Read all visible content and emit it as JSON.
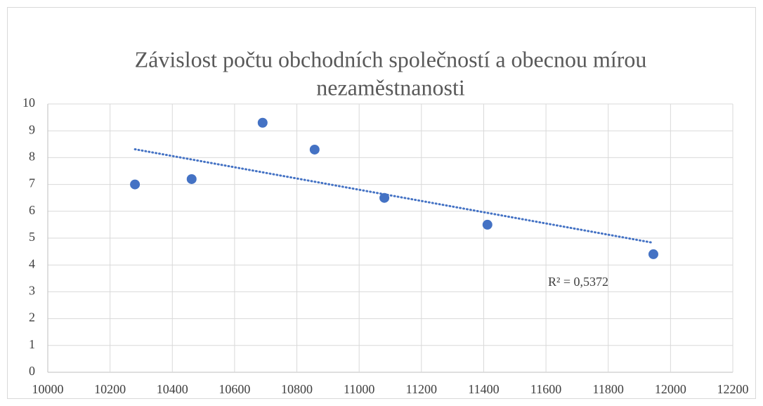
{
  "chart_data": {
    "type": "scatter",
    "title": [
      "Závislost počtu obchodních společností a obecnou mírou",
      "nezaměstnanosti"
    ],
    "series": [
      {
        "color": "#4472c4",
        "x": [
          10280,
          10462,
          10690,
          10857,
          11081,
          11412,
          11945
        ],
        "values": [
          7.0,
          7.2,
          9.3,
          8.3,
          6.5,
          5.5,
          4.4
        ]
      }
    ],
    "trendline": "linear",
    "annotation": "R² = 0,5372",
    "xlim": [
      10000,
      12200
    ],
    "xticks": [
      10000,
      10200,
      10400,
      10600,
      10800,
      11000,
      11200,
      11400,
      11600,
      11800,
      12000,
      12200
    ],
    "ylim": [
      0,
      10
    ],
    "yticks": [
      0,
      1,
      2,
      3,
      4,
      5,
      6,
      7,
      8,
      9,
      10
    ],
    "grid": true
  }
}
